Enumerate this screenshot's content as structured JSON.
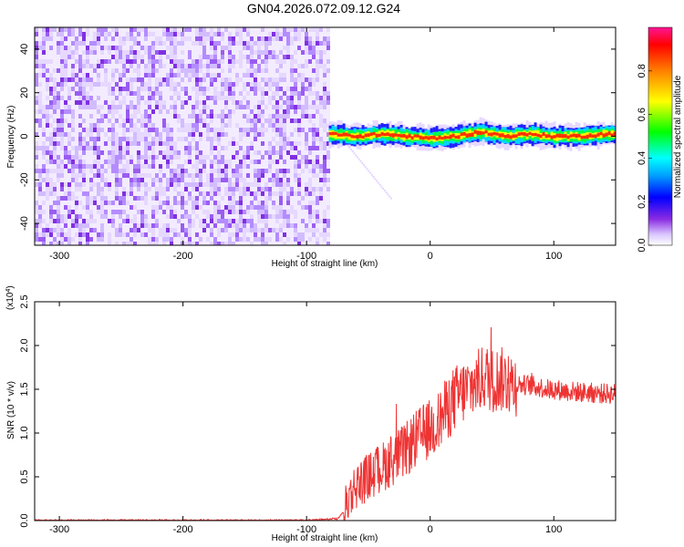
{
  "title": "GN04.2026.072.09.12.G24",
  "chart_data": [
    {
      "type": "heatmap",
      "xlabel": "Height of straight line (km)",
      "ylabel": "Frequency (Hz)",
      "xlim": [
        -320,
        150
      ],
      "ylim": [
        -50,
        50
      ],
      "x_ticks": [
        -300,
        -200,
        -100,
        0,
        100
      ],
      "y_ticks": [
        -40,
        -20,
        0,
        20,
        40
      ],
      "colorbar": {
        "label": "Normalized spectral amplitude",
        "range": [
          0,
          1
        ],
        "ticks": [
          0.0,
          0.2,
          0.4,
          0.6,
          0.8
        ]
      },
      "noise_region_x": [
        -320,
        -82
      ],
      "signal_band": {
        "x": [
          -82,
          150
        ],
        "freq_center": 0,
        "half_width_hz": 4
      },
      "trace_points": [
        {
          "x": -80,
          "y": 1
        },
        {
          "x": -60,
          "y": 0
        },
        {
          "x": -40,
          "y": 1
        },
        {
          "x": -20,
          "y": 0
        },
        {
          "x": 0,
          "y": -1
        },
        {
          "x": 20,
          "y": 0
        },
        {
          "x": 40,
          "y": 2
        },
        {
          "x": 60,
          "y": 0
        },
        {
          "x": 80,
          "y": 1
        },
        {
          "x": 100,
          "y": 0
        },
        {
          "x": 120,
          "y": 0
        },
        {
          "x": 140,
          "y": 1
        }
      ]
    },
    {
      "type": "line",
      "xlabel": "Height of straight line (km)",
      "ylabel": "SNR (10 * v/v)",
      "y_multiplier": "(x10",
      "y_multiplier_exp": "4",
      "y_multiplier_close": ")",
      "xlim": [
        -320,
        150
      ],
      "ylim": [
        0,
        2.5
      ],
      "x_ticks": [
        -300,
        -200,
        -100,
        0,
        100
      ],
      "y_ticks": [
        0.0,
        0.5,
        1.0,
        1.5,
        2.0,
        2.5
      ],
      "color": "#ee3333",
      "series": [
        {
          "x": [
            -320,
            -250,
            -150,
            -100,
            -75,
            -70,
            -65,
            -60,
            -55,
            -50,
            -45,
            -40,
            -35,
            -30,
            -25,
            -20,
            -15,
            -10,
            -5,
            0,
            5,
            10,
            15,
            20,
            25,
            30,
            35,
            40,
            45,
            50,
            55,
            60,
            65,
            70,
            75,
            80,
            85,
            90,
            95,
            100,
            110,
            120,
            130,
            140,
            150
          ],
          "values": [
            0.0,
            0.0,
            0.0,
            0.0,
            0.02,
            0.1,
            0.3,
            0.4,
            0.45,
            0.5,
            0.55,
            0.6,
            0.65,
            0.7,
            0.75,
            0.8,
            0.88,
            0.95,
            1.0,
            1.05,
            1.1,
            1.2,
            1.3,
            1.4,
            1.45,
            1.5,
            1.55,
            1.6,
            1.65,
            1.6,
            1.62,
            1.6,
            1.58,
            1.56,
            1.55,
            1.55,
            1.53,
            1.52,
            1.5,
            1.5,
            1.48,
            1.47,
            1.46,
            1.45,
            1.45
          ]
        }
      ]
    }
  ]
}
